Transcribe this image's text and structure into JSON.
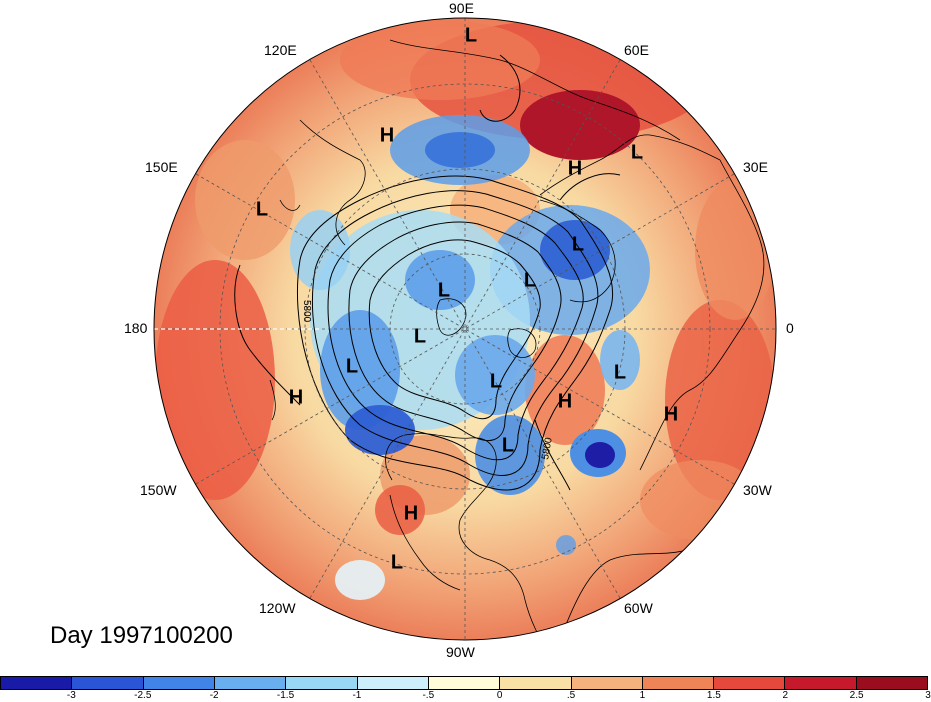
{
  "title": "Day 1997100200",
  "longitude_labels": {
    "top": "90E",
    "upper_left": "120E",
    "upper_right": "60E",
    "left_upper": "150E",
    "right_upper": "30E",
    "left": "180",
    "right": "0",
    "left_lower": "150W",
    "right_lower": "30W",
    "lower_left": "120W",
    "lower_right": "60W",
    "bottom": "90W"
  },
  "contour_label": "5800",
  "pressure_centers": [
    {
      "type": "L"
    },
    {
      "type": "H"
    },
    {
      "type": "H"
    },
    {
      "type": "L"
    },
    {
      "type": "L"
    },
    {
      "type": "L"
    },
    {
      "type": "L"
    },
    {
      "type": "L"
    },
    {
      "type": "L"
    },
    {
      "type": "L"
    },
    {
      "type": "L"
    },
    {
      "type": "H"
    },
    {
      "type": "H"
    },
    {
      "type": "L"
    },
    {
      "type": "H"
    },
    {
      "type": "H"
    },
    {
      "type": "L"
    },
    {
      "type": "L"
    }
  ],
  "colorbar": {
    "colors": [
      "#1a1aa8",
      "#2a55d6",
      "#3f84e6",
      "#69afef",
      "#98d8f5",
      "#cdeffb",
      "#fefcd9",
      "#f9e1a5",
      "#f5b27d",
      "#ef8457",
      "#e6483c",
      "#c6192b",
      "#9a0d1e"
    ],
    "labels": [
      "-3",
      "-2.5",
      "-2",
      "-1.5",
      "-1",
      "-.5",
      "0",
      ".5",
      "1",
      "1.5",
      "2",
      "2.5",
      "3"
    ]
  }
}
